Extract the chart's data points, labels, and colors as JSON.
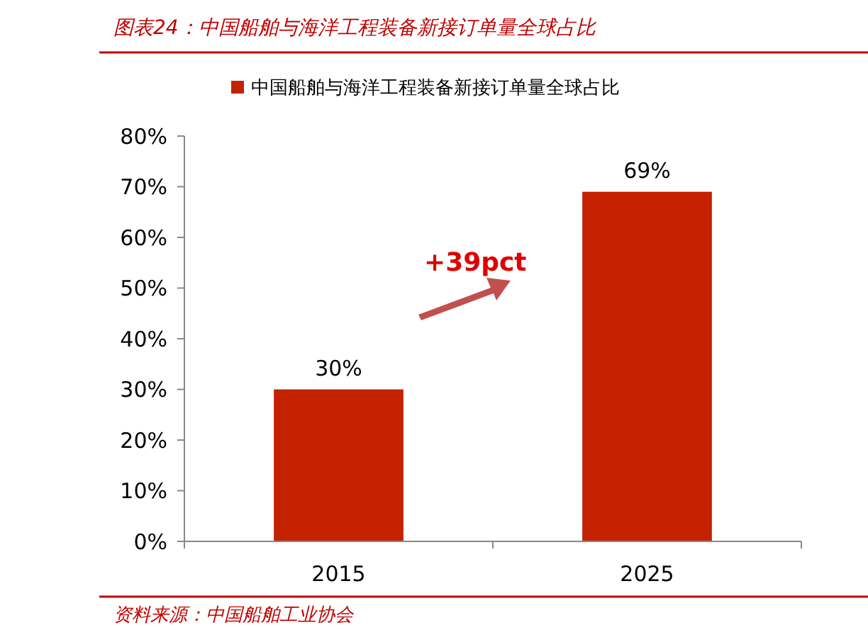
{
  "chart_data": {
    "type": "bar",
    "title": "图表24：中国船舶与海洋工程装备新接订单量全球占比",
    "categories": [
      "2015",
      "2025"
    ],
    "series": [
      {
        "name": "中国船舶与海洋工程装备新接订单量全球占比",
        "color": "#c42100",
        "values": [
          30,
          69
        ]
      }
    ],
    "value_labels": [
      "30%",
      "69%"
    ],
    "ylim": [
      0,
      80
    ],
    "yticks": [
      {
        "value": 0,
        "label": "0%"
      },
      {
        "value": 10,
        "label": "10%"
      },
      {
        "value": 20,
        "label": "20%"
      },
      {
        "value": 30,
        "label": "30%"
      },
      {
        "value": 40,
        "label": "40%"
      },
      {
        "value": 50,
        "label": "50%"
      },
      {
        "value": 60,
        "label": "60%"
      },
      {
        "value": 70,
        "label": "70%"
      },
      {
        "value": 80,
        "label": "80%"
      }
    ],
    "legend": "top",
    "annotations": [
      "+39pct",
      "资料来源：中国船舶工业协会"
    ]
  }
}
